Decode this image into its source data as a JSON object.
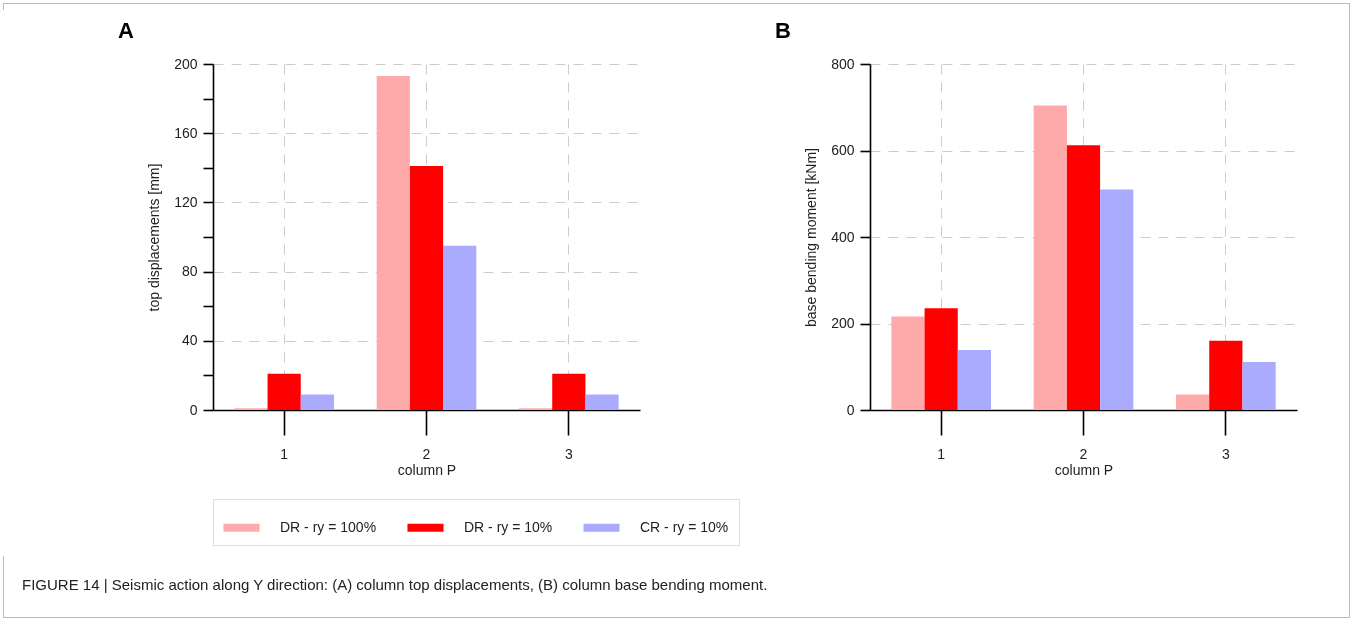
{
  "chart_data": [
    {
      "type": "bar",
      "title": "A",
      "xlabel": "column P",
      "ylabel": "top displacements [mm]",
      "categories": [
        "1",
        "2",
        "3"
      ],
      "series": [
        {
          "name": "DR - ry = 100%",
          "color": "#ffaaaa",
          "values": [
            1,
            193,
            1
          ]
        },
        {
          "name": "DR - ry = 10%",
          "color": "#ff0000",
          "values": [
            21,
            141,
            21
          ]
        },
        {
          "name": "CR - ry = 10%",
          "color": "#aaaaff",
          "values": [
            9,
            95,
            9
          ]
        }
      ],
      "ylim": [
        0,
        200
      ],
      "yticks": [
        0,
        {
          "value": 20,
          "label": null
        },
        40,
        {
          "value": 60,
          "label": null
        },
        80,
        {
          "value": 100,
          "label": null
        },
        120,
        {
          "value": 140,
          "label": null
        },
        160,
        {
          "value": 180,
          "label": null
        },
        200
      ],
      "grid": true,
      "legend": "bottom"
    },
    {
      "type": "bar",
      "title": "B",
      "xlabel": "column P",
      "ylabel": "base bending moment [kNm]",
      "categories": [
        "1",
        "2",
        "3"
      ],
      "series": [
        {
          "name": "DR - ry = 100%",
          "color": "#ffaaaa",
          "values": [
            216,
            704,
            36
          ]
        },
        {
          "name": "DR - ry = 10%",
          "color": "#ff0000",
          "values": [
            235,
            612,
            160
          ]
        },
        {
          "name": "CR - ry = 10%",
          "color": "#aaaaff",
          "values": [
            139,
            510,
            111
          ]
        }
      ],
      "ylim": [
        0,
        800
      ],
      "yticks": [
        0,
        200,
        400,
        600,
        800
      ],
      "grid": true,
      "legend": "bottom",
      "annotations": [
        "FIGURE 14 | Seismic action along Y direction: (A) column top displacements, (B) column base bending moment."
      ]
    }
  ]
}
